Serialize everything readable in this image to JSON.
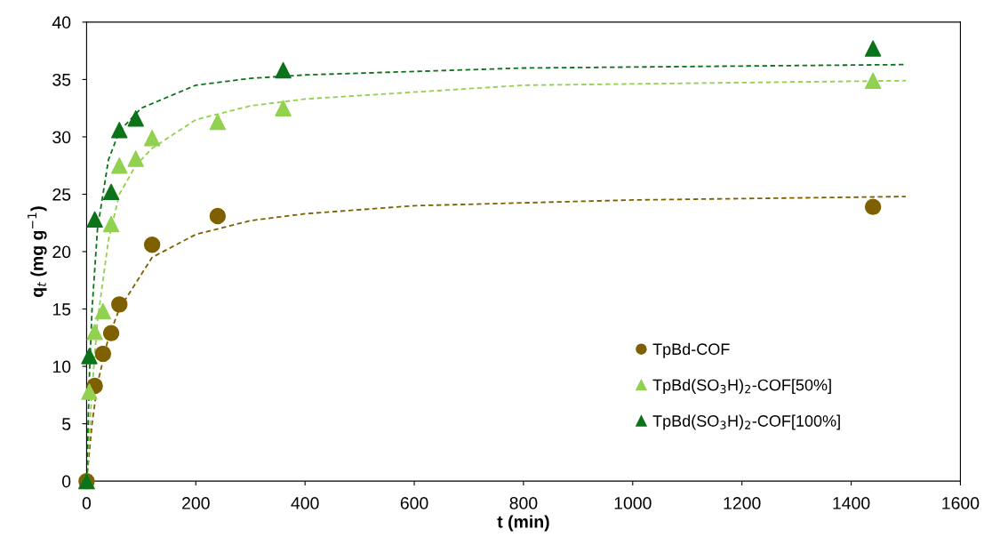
{
  "chart_data": {
    "type": "scatter",
    "xlabel": "t (min)",
    "ylabel": "q$_{t}$ (mg g$^{−1}$)",
    "xlim": [
      0,
      1600
    ],
    "ylim": [
      0,
      40
    ],
    "xticks": [
      0,
      200,
      400,
      600,
      800,
      1000,
      1200,
      1400,
      1600
    ],
    "yticks": [
      0,
      5,
      10,
      15,
      20,
      25,
      30,
      35,
      40
    ],
    "grid": false,
    "legend": "bottom right",
    "series": [
      {
        "name": "TpBd-COF",
        "color": "#7f6000",
        "marker": "circle",
        "x": [
          0,
          15,
          30,
          45,
          60,
          120,
          240,
          1440
        ],
        "values": [
          0,
          8.3,
          11.1,
          12.9,
          15.4,
          20.6,
          23.1,
          23.9
        ]
      },
      {
        "name": "TpBd(SO$_{3}$H)$_{2}$-COF[50%]",
        "color": "#92d050",
        "marker": "triangle",
        "x": [
          0,
          5,
          15,
          30,
          45,
          60,
          90,
          120,
          240,
          360,
          1440
        ],
        "values": [
          0,
          7.8,
          13.0,
          14.8,
          22.4,
          27.5,
          28.1,
          29.9,
          31.3,
          32.5,
          34.9
        ]
      },
      {
        "name": "TpBd(SO$_{3}$H)$_{2}$-COF[100%]",
        "color": "#0b7319",
        "marker": "triangle",
        "x": [
          0,
          5,
          15,
          45,
          60,
          90,
          360,
          1440
        ],
        "values": [
          0,
          10.9,
          22.8,
          25.2,
          30.6,
          31.6,
          35.8,
          37.7
        ]
      },
      {
        "type": "line",
        "color": "#7f6000",
        "line_style": "dashed",
        "marker": "none",
        "x": [
          0,
          10,
          20,
          40,
          60,
          120,
          200,
          300,
          400,
          600,
          1000,
          1500
        ],
        "values": [
          0,
          5,
          8.5,
          12.5,
          15,
          19.5,
          21.5,
          22.7,
          23.3,
          24.0,
          24.5,
          24.8
        ]
      },
      {
        "type": "line",
        "color": "#92d050",
        "line_style": "dashed",
        "marker": "none",
        "x": [
          0,
          10,
          20,
          40,
          60,
          90,
          120,
          200,
          300,
          400,
          800,
          1500
        ],
        "values": [
          0,
          8,
          14,
          21,
          25,
          27.5,
          29,
          31.5,
          32.7,
          33.3,
          34.5,
          34.9
        ]
      },
      {
        "type": "line",
        "color": "#0b7319",
        "line_style": "dashed",
        "marker": "none",
        "x": [
          0,
          5,
          10,
          20,
          40,
          60,
          100,
          200,
          300,
          400,
          800,
          1500
        ],
        "values": [
          0,
          9,
          15,
          22,
          28,
          30.5,
          32.5,
          34.5,
          35.1,
          35.4,
          36.0,
          36.3
        ]
      }
    ]
  }
}
